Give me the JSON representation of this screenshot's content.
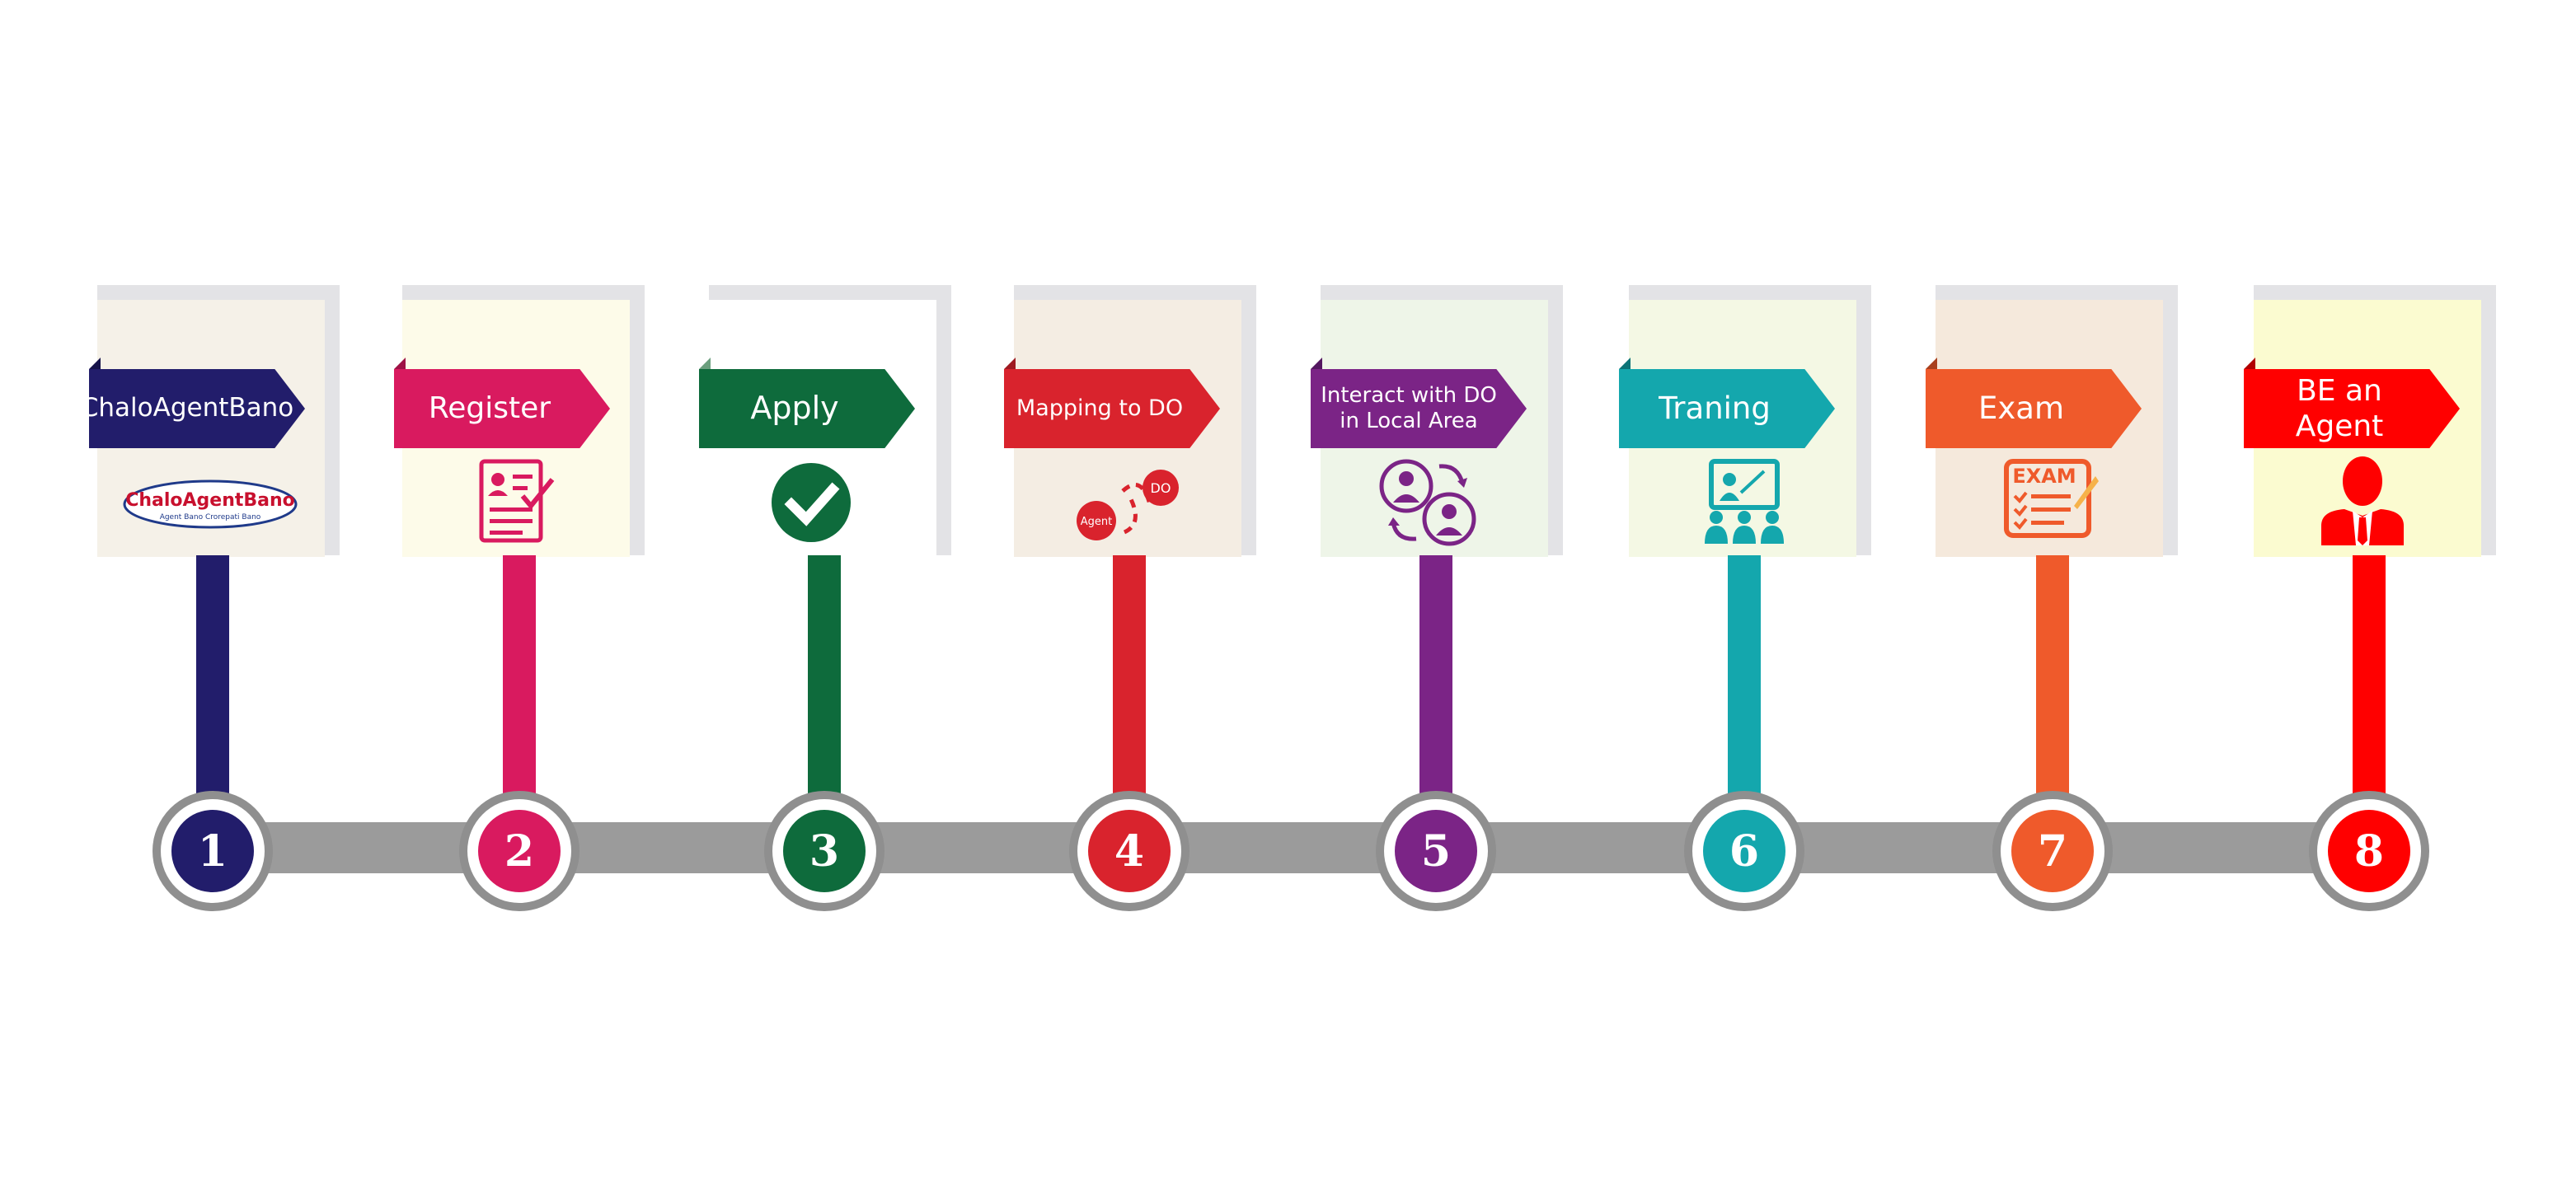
{
  "steps": [
    {
      "number": "1",
      "label": "ChaloAgentBano",
      "color": "#221d6b",
      "card_bg": "#f5f1e8",
      "icon": "chaloagentbano-logo-icon",
      "logo": {
        "line1": "ChaloAgentBano",
        "line2": "Agent Bano Crorepati Bano"
      }
    },
    {
      "number": "2",
      "label": "Register",
      "color": "#d91a5f",
      "card_bg": "#fdfbe9",
      "icon": "registration-form-icon"
    },
    {
      "number": "3",
      "label": "Apply",
      "color": "#0e6b3c",
      "card_bg": "#ffffff",
      "icon": "checkmark-circle-icon"
    },
    {
      "number": "4",
      "label": "Mapping to DO",
      "color": "#d9232d",
      "card_bg": "#f4ede3",
      "icon": "agent-do-mapping-icon",
      "icon_text": {
        "agent": "Agent",
        "do": "DO"
      }
    },
    {
      "number": "5",
      "label_line1": "Interact with DO",
      "label_line2": "in Local Area",
      "color": "#7b2486",
      "card_bg": "#eef5e8",
      "icon": "people-exchange-icon"
    },
    {
      "number": "6",
      "label": "Traning",
      "color": "#14a7ad",
      "card_bg": "#f4f8e4",
      "icon": "training-presentation-icon"
    },
    {
      "number": "7",
      "label": "Exam",
      "color": "#ef5a2b",
      "card_bg": "#f5e9dc",
      "icon": "exam-checklist-icon",
      "icon_text": {
        "exam": "EXAM"
      }
    },
    {
      "number": "8",
      "label": "BE an Agent",
      "color": "#ff0000",
      "card_bg": "#fbfbd0",
      "icon": "agent-person-icon"
    }
  ]
}
